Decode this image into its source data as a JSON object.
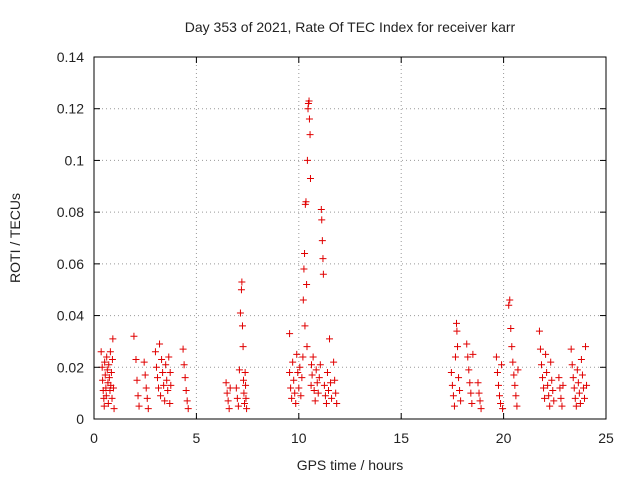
{
  "chart_data": {
    "type": "scatter",
    "title": "Day 353 of 2021, Rate Of TEC Index for receiver karr",
    "xlabel": "GPS time / hours",
    "ylabel": "ROTI / TECUs",
    "xlim": [
      0,
      25
    ],
    "ylim": [
      0,
      0.14
    ],
    "xticks": [
      "0",
      "5",
      "10",
      "15",
      "20",
      "25"
    ],
    "xtick_values": [
      0,
      5,
      10,
      15,
      20,
      25
    ],
    "yticks": [
      "0",
      "0.02",
      "0.04",
      "0.06",
      "0.08",
      "0.1",
      "0.12",
      "0.14"
    ],
    "ytick_values": [
      0,
      0.02,
      0.04,
      0.06,
      0.08,
      0.1,
      0.12,
      0.14
    ],
    "grid": true,
    "marker": "+",
    "color": "#e00000",
    "series": [
      {
        "name": "ROTI",
        "points": [
          [
            0.35,
            0.026
          ],
          [
            0.4,
            0.02
          ],
          [
            0.42,
            0.015
          ],
          [
            0.45,
            0.011
          ],
          [
            0.48,
            0.008
          ],
          [
            0.5,
            0.005
          ],
          [
            0.52,
            0.022
          ],
          [
            0.55,
            0.017
          ],
          [
            0.58,
            0.012
          ],
          [
            0.6,
            0.009
          ],
          [
            0.62,
            0.024
          ],
          [
            0.65,
            0.019
          ],
          [
            0.68,
            0.014
          ],
          [
            0.7,
            0.006
          ],
          [
            0.72,
            0.021
          ],
          [
            0.75,
            0.016
          ],
          [
            0.78,
            0.011
          ],
          [
            0.8,
            0.026
          ],
          [
            0.82,
            0.013
          ],
          [
            0.85,
            0.018
          ],
          [
            0.88,
            0.008
          ],
          [
            0.9,
            0.023
          ],
          [
            0.92,
            0.031
          ],
          [
            0.95,
            0.012
          ],
          [
            0.98,
            0.004
          ],
          [
            1.95,
            0.032
          ],
          [
            2.05,
            0.023
          ],
          [
            2.1,
            0.015
          ],
          [
            2.15,
            0.009
          ],
          [
            2.2,
            0.005
          ],
          [
            2.45,
            0.022
          ],
          [
            2.5,
            0.017
          ],
          [
            2.55,
            0.012
          ],
          [
            2.6,
            0.008
          ],
          [
            2.65,
            0.004
          ],
          [
            3.0,
            0.026
          ],
          [
            3.05,
            0.02
          ],
          [
            3.1,
            0.016
          ],
          [
            3.15,
            0.012
          ],
          [
            3.2,
            0.029
          ],
          [
            3.25,
            0.009
          ],
          [
            3.3,
            0.023
          ],
          [
            3.35,
            0.018
          ],
          [
            3.4,
            0.013
          ],
          [
            3.45,
            0.007
          ],
          [
            3.5,
            0.021
          ],
          [
            3.55,
            0.015
          ],
          [
            3.6,
            0.011
          ],
          [
            3.65,
            0.024
          ],
          [
            3.7,
            0.006
          ],
          [
            3.72,
            0.018
          ],
          [
            3.75,
            0.013
          ],
          [
            4.35,
            0.027
          ],
          [
            4.4,
            0.021
          ],
          [
            4.45,
            0.016
          ],
          [
            4.5,
            0.011
          ],
          [
            4.55,
            0.007
          ],
          [
            4.6,
            0.004
          ],
          [
            6.45,
            0.014
          ],
          [
            6.5,
            0.01
          ],
          [
            6.55,
            0.007
          ],
          [
            6.6,
            0.004
          ],
          [
            6.65,
            0.012
          ],
          [
            6.95,
            0.012
          ],
          [
            7.0,
            0.008
          ],
          [
            7.05,
            0.005
          ],
          [
            7.1,
            0.019
          ],
          [
            7.15,
            0.041
          ],
          [
            7.2,
            0.05
          ],
          [
            7.22,
            0.053
          ],
          [
            7.25,
            0.036
          ],
          [
            7.28,
            0.028
          ],
          [
            7.3,
            0.015
          ],
          [
            7.32,
            0.01
          ],
          [
            7.35,
            0.006
          ],
          [
            7.38,
            0.018
          ],
          [
            7.4,
            0.013
          ],
          [
            7.42,
            0.008
          ],
          [
            7.45,
            0.004
          ],
          [
            9.55,
            0.033
          ],
          [
            9.55,
            0.018
          ],
          [
            9.6,
            0.012
          ],
          [
            9.65,
            0.008
          ],
          [
            9.7,
            0.022
          ],
          [
            9.75,
            0.015
          ],
          [
            9.8,
            0.01
          ],
          [
            9.85,
            0.006
          ],
          [
            9.9,
            0.025
          ],
          [
            9.95,
            0.018
          ],
          [
            10.0,
            0.012
          ],
          [
            10.05,
            0.02
          ],
          [
            10.1,
            0.009
          ],
          [
            10.15,
            0.016
          ],
          [
            10.2,
            0.024
          ],
          [
            10.22,
            0.046
          ],
          [
            10.25,
            0.058
          ],
          [
            10.28,
            0.064
          ],
          [
            10.3,
            0.036
          ],
          [
            10.32,
            0.083
          ],
          [
            10.35,
            0.084
          ],
          [
            10.38,
            0.052
          ],
          [
            10.4,
            0.028
          ],
          [
            10.42,
            0.1
          ],
          [
            10.45,
            0.12
          ],
          [
            10.47,
            0.122
          ],
          [
            10.5,
            0.123
          ],
          [
            10.52,
            0.116
          ],
          [
            10.55,
            0.11
          ],
          [
            10.57,
            0.093
          ],
          [
            10.6,
            0.013
          ],
          [
            10.62,
            0.021
          ],
          [
            10.65,
            0.017
          ],
          [
            10.7,
            0.024
          ],
          [
            10.75,
            0.011
          ],
          [
            10.8,
            0.007
          ],
          [
            10.85,
            0.019
          ],
          [
            10.9,
            0.014
          ],
          [
            10.95,
            0.01
          ],
          [
            11.0,
            0.016
          ],
          [
            11.05,
            0.021
          ],
          [
            11.1,
            0.081
          ],
          [
            11.12,
            0.077
          ],
          [
            11.15,
            0.069
          ],
          [
            11.18,
            0.062
          ],
          [
            11.2,
            0.056
          ],
          [
            11.25,
            0.013
          ],
          [
            11.3,
            0.009
          ],
          [
            11.35,
            0.006
          ],
          [
            11.4,
            0.018
          ],
          [
            11.45,
            0.011
          ],
          [
            11.5,
            0.031
          ],
          [
            11.55,
            0.014
          ],
          [
            11.6,
            0.008
          ],
          [
            11.7,
            0.022
          ],
          [
            11.75,
            0.015
          ],
          [
            11.8,
            0.01
          ],
          [
            11.85,
            0.006
          ],
          [
            17.45,
            0.018
          ],
          [
            17.5,
            0.013
          ],
          [
            17.55,
            0.009
          ],
          [
            17.6,
            0.005
          ],
          [
            17.65,
            0.024
          ],
          [
            17.7,
            0.037
          ],
          [
            17.72,
            0.034
          ],
          [
            17.75,
            0.028
          ],
          [
            17.8,
            0.016
          ],
          [
            17.85,
            0.011
          ],
          [
            17.9,
            0.007
          ],
          [
            18.2,
            0.029
          ],
          [
            18.25,
            0.024
          ],
          [
            18.3,
            0.019
          ],
          [
            18.35,
            0.014
          ],
          [
            18.4,
            0.01
          ],
          [
            18.45,
            0.006
          ],
          [
            18.5,
            0.025
          ],
          [
            18.75,
            0.014
          ],
          [
            18.8,
            0.01
          ],
          [
            18.85,
            0.007
          ],
          [
            18.9,
            0.004
          ],
          [
            19.65,
            0.024
          ],
          [
            19.7,
            0.018
          ],
          [
            19.75,
            0.013
          ],
          [
            19.8,
            0.009
          ],
          [
            19.85,
            0.006
          ],
          [
            19.9,
            0.021
          ],
          [
            19.95,
            0.004
          ],
          [
            20.25,
            0.044
          ],
          [
            20.3,
            0.046
          ],
          [
            20.35,
            0.035
          ],
          [
            20.4,
            0.028
          ],
          [
            20.45,
            0.022
          ],
          [
            20.5,
            0.017
          ],
          [
            20.55,
            0.013
          ],
          [
            20.6,
            0.009
          ],
          [
            20.65,
            0.005
          ],
          [
            20.7,
            0.019
          ],
          [
            21.75,
            0.034
          ],
          [
            21.8,
            0.027
          ],
          [
            21.85,
            0.021
          ],
          [
            21.9,
            0.016
          ],
          [
            21.95,
            0.012
          ],
          [
            22.0,
            0.008
          ],
          [
            22.05,
            0.025
          ],
          [
            22.1,
            0.018
          ],
          [
            22.15,
            0.013
          ],
          [
            22.2,
            0.009
          ],
          [
            22.25,
            0.005
          ],
          [
            22.3,
            0.022
          ],
          [
            22.35,
            0.015
          ],
          [
            22.4,
            0.011
          ],
          [
            22.45,
            0.007
          ],
          [
            22.7,
            0.016
          ],
          [
            22.75,
            0.012
          ],
          [
            22.8,
            0.008
          ],
          [
            22.85,
            0.005
          ],
          [
            22.9,
            0.013
          ],
          [
            23.3,
            0.027
          ],
          [
            23.35,
            0.021
          ],
          [
            23.4,
            0.016
          ],
          [
            23.45,
            0.012
          ],
          [
            23.5,
            0.008
          ],
          [
            23.55,
            0.005
          ],
          [
            23.6,
            0.019
          ],
          [
            23.65,
            0.014
          ],
          [
            23.7,
            0.01
          ],
          [
            23.75,
            0.006
          ],
          [
            23.8,
            0.023
          ],
          [
            23.85,
            0.017
          ],
          [
            23.9,
            0.012
          ],
          [
            23.95,
            0.008
          ],
          [
            24.0,
            0.028
          ],
          [
            24.05,
            0.013
          ]
        ]
      }
    ]
  }
}
